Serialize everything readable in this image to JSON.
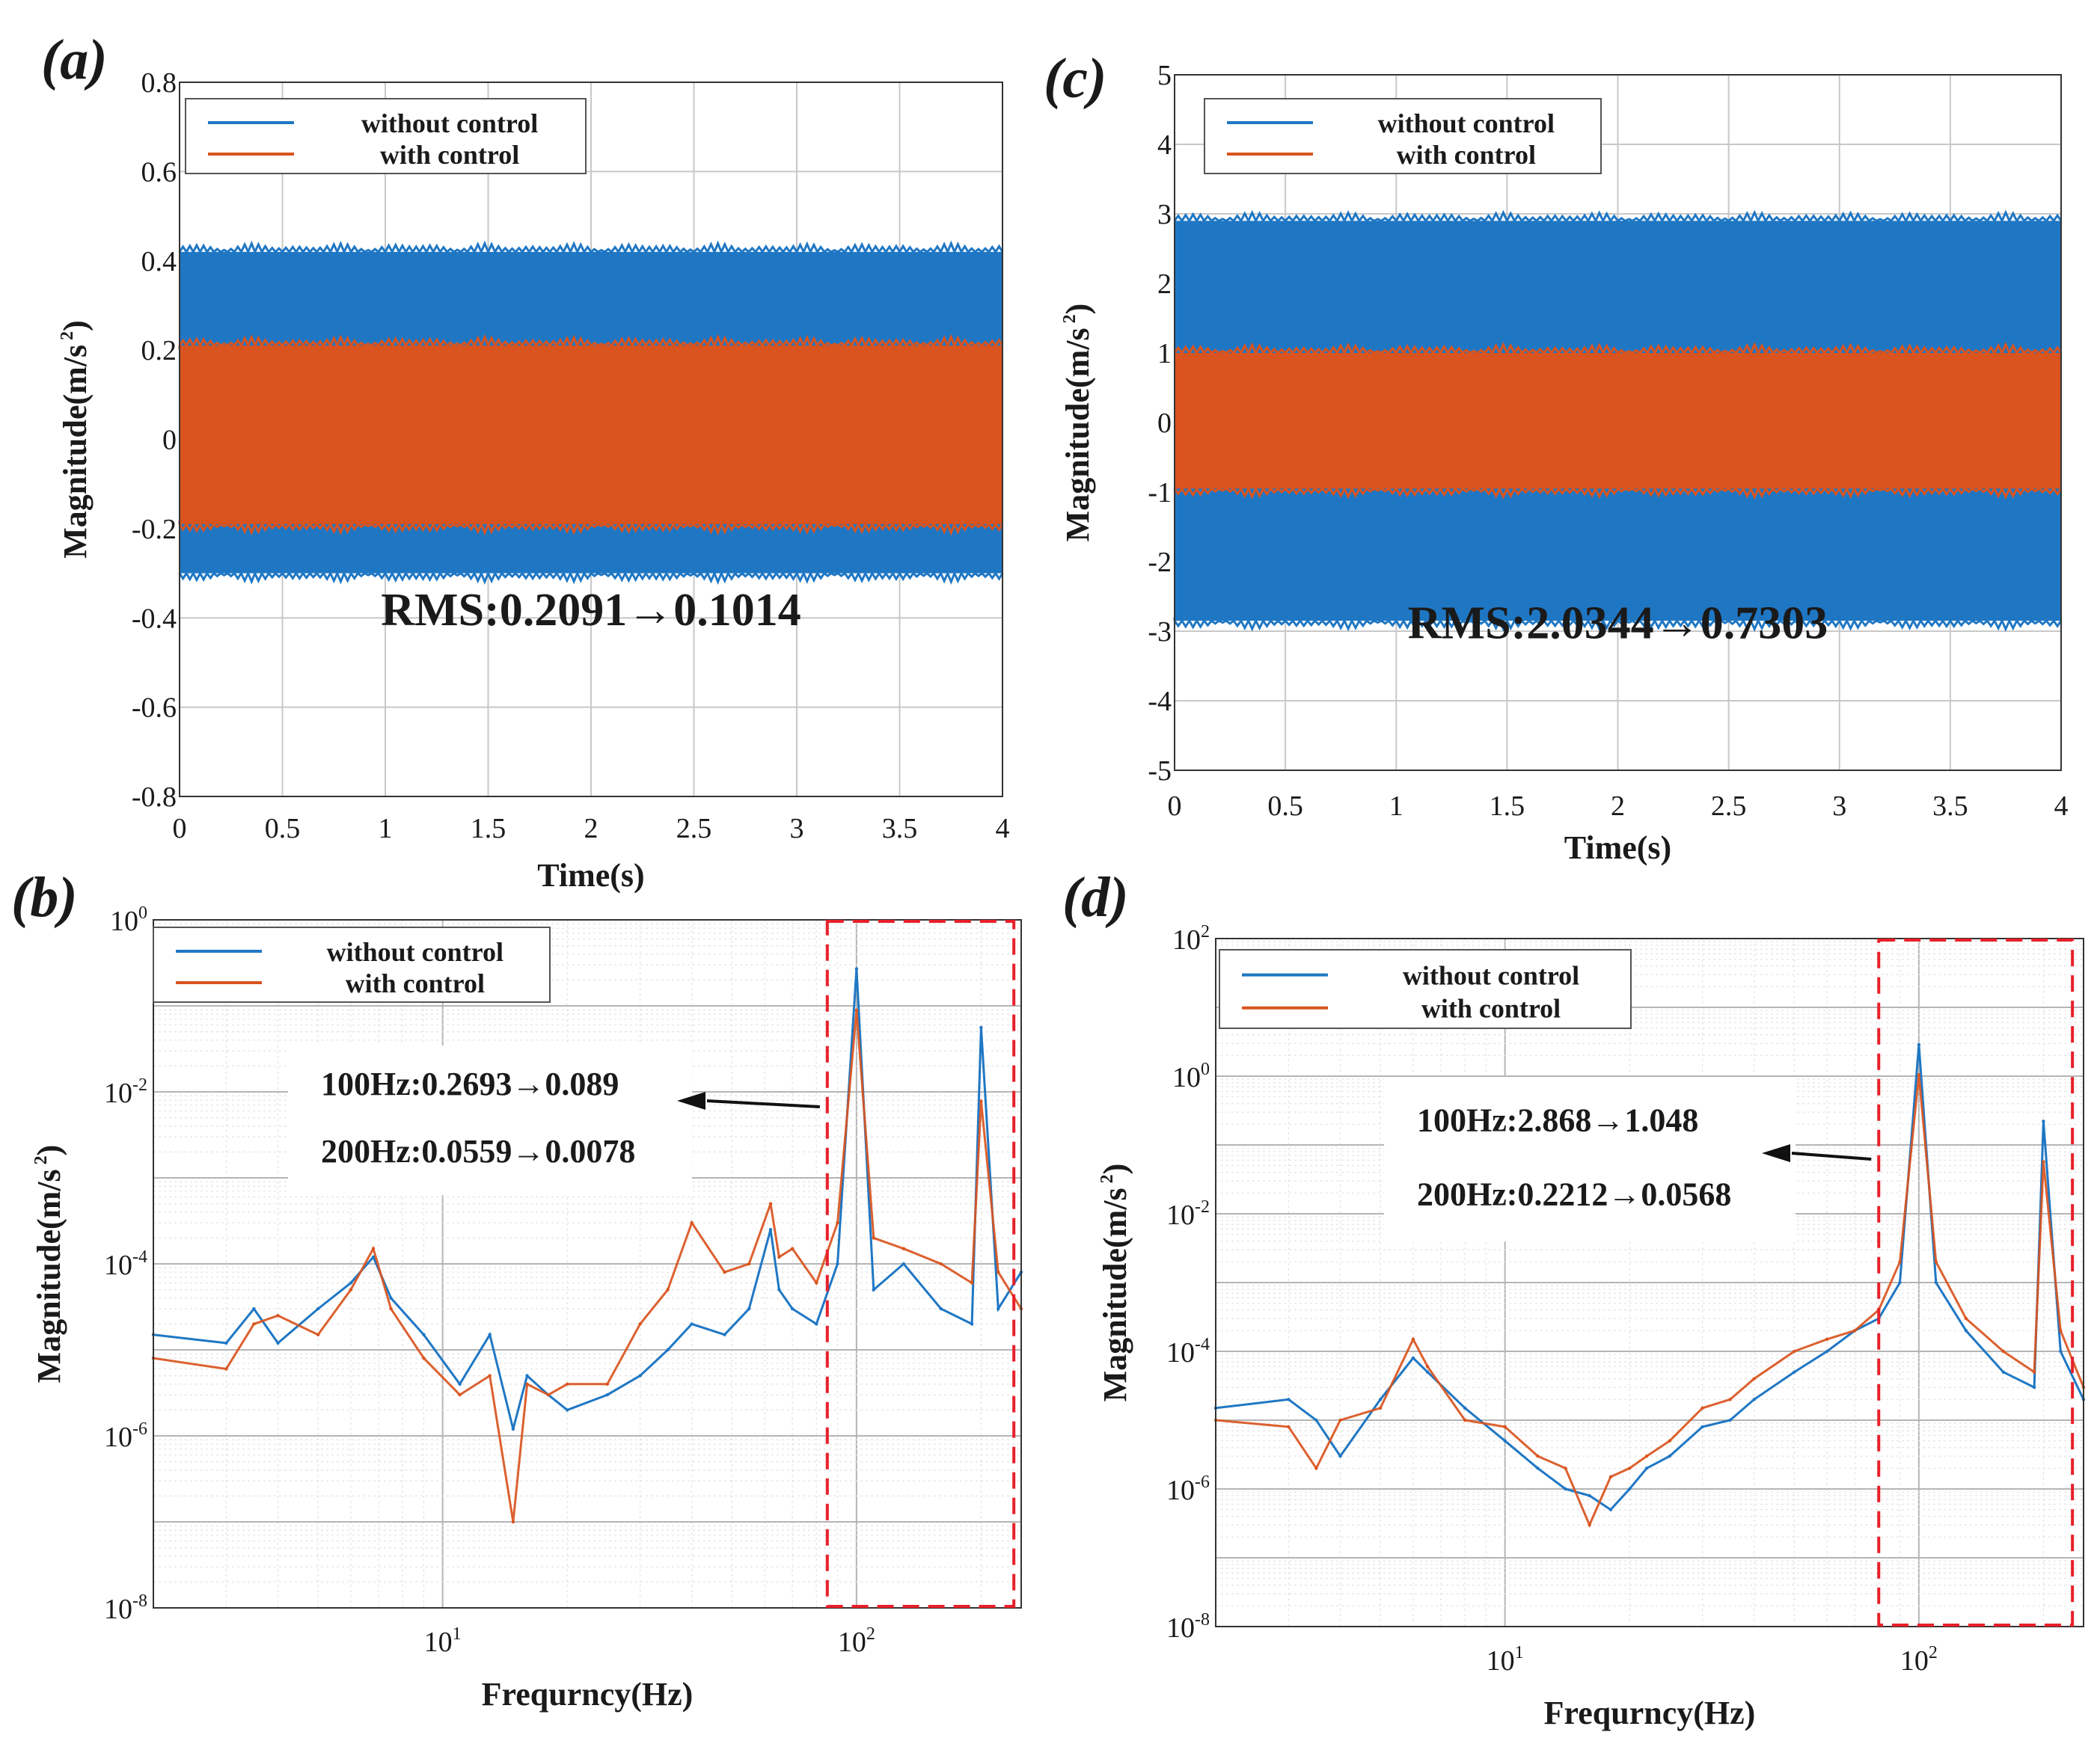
{
  "figure": {
    "colors": {
      "without": "#1f77c4",
      "with": "#d9541e",
      "highlight": "#e8202a",
      "grid": "#c8c8c8",
      "axis": "#333333"
    },
    "legend_labels": {
      "without": "without control",
      "with": "with control"
    }
  },
  "chart_data": [
    {
      "id": "a",
      "type": "line",
      "panel_label": "(a)",
      "title": "",
      "xlabel": "Time(s)",
      "ylabel": "Magnitude(m/s",
      "ylabel_sup": "2",
      "ylabel_close": ")",
      "xlim": [
        0,
        4
      ],
      "ylim": [
        -0.8,
        0.8
      ],
      "x_ticks": [
        "0",
        "0.5",
        "1",
        "1.5",
        "2",
        "2.5",
        "3",
        "3.5",
        "4"
      ],
      "y_ticks": [
        "-0.8",
        "-0.6",
        "-0.4",
        "-0.2",
        "0",
        "0.2",
        "0.4",
        "0.6",
        "0.8"
      ],
      "series": [
        {
          "name": "without control",
          "signal": "oscillation",
          "envelope_upper": 0.42,
          "envelope_lower": -0.3,
          "rms": 0.2091
        },
        {
          "name": "with control",
          "signal": "oscillation",
          "envelope_upper": 0.21,
          "envelope_lower": -0.19,
          "rms": 0.1014
        }
      ],
      "annotation": "RMS:0.2091→0.1014",
      "legend": "top-left"
    },
    {
      "id": "c",
      "type": "line",
      "panel_label": "(c)",
      "title": "",
      "xlabel": "Time(s)",
      "ylabel": "Magnitude(m/s",
      "ylabel_sup": "2",
      "ylabel_close": ")",
      "xlim": [
        0,
        4
      ],
      "ylim": [
        -5,
        5
      ],
      "x_ticks": [
        "0",
        "0.5",
        "1",
        "1.5",
        "2",
        "2.5",
        "3",
        "3.5",
        "4"
      ],
      "y_ticks": [
        "-5",
        "-4",
        "-3",
        "-2",
        "-1",
        "0",
        "1",
        "2",
        "3",
        "4",
        "5"
      ],
      "series": [
        {
          "name": "without control",
          "signal": "oscillation",
          "envelope_upper": 2.9,
          "envelope_lower": -2.85,
          "rms": 2.0344
        },
        {
          "name": "with control",
          "signal": "oscillation",
          "envelope_upper": 1.0,
          "envelope_lower": -0.95,
          "rms": 0.7303
        }
      ],
      "annotation": "RMS:2.0344→0.7303",
      "legend": "top-left"
    },
    {
      "id": "b",
      "type": "line",
      "panel_label": "(b)",
      "title": "",
      "xlabel": "Frequrncy(Hz)",
      "ylabel": "Magnitude(m/s",
      "ylabel_sup": "2",
      "ylabel_close": ")",
      "xscale": "log",
      "yscale": "log",
      "xlim": [
        2,
        250
      ],
      "ylim_exp": [
        -8,
        0
      ],
      "x_tick_values": [
        10,
        100
      ],
      "x_tick_exps": [
        "1",
        "2"
      ],
      "y_tick_exps": [
        "-8",
        "-6",
        "-4",
        "-2",
        "0"
      ],
      "series": [
        {
          "name": "without control",
          "x": [
            2,
            3,
            3.5,
            4,
            5,
            6,
            6.8,
            7.5,
            9,
            11,
            13,
            14.8,
            16,
            18,
            20,
            25,
            30,
            35,
            40,
            48,
            55,
            62,
            65,
            70,
            80,
            90,
            100,
            110,
            130,
            160,
            190,
            200,
            220,
            250
          ],
          "y": [
            1.5e-05,
            1.2e-05,
            3e-05,
            1.2e-05,
            3e-05,
            6e-05,
            0.00012,
            4e-05,
            1.5e-05,
            4e-06,
            1.5e-05,
            1.2e-06,
            5e-06,
            3e-06,
            2e-06,
            3e-06,
            5e-06,
            1e-05,
            2e-05,
            1.5e-05,
            3e-05,
            0.00025,
            5e-05,
            3e-05,
            2e-05,
            0.0001,
            0.2693,
            5e-05,
            0.0001,
            3e-05,
            2e-05,
            0.0559,
            3e-05,
            8e-05
          ]
        },
        {
          "name": "with control",
          "x": [
            2,
            3,
            3.5,
            4,
            5,
            6,
            6.8,
            7.5,
            9,
            11,
            13,
            14.8,
            16,
            18,
            20,
            25,
            30,
            35,
            40,
            48,
            55,
            62,
            65,
            70,
            80,
            90,
            100,
            110,
            130,
            160,
            190,
            200,
            220,
            250
          ],
          "y": [
            8e-06,
            6e-06,
            2e-05,
            2.5e-05,
            1.5e-05,
            5e-05,
            0.00015,
            3e-05,
            8e-06,
            3e-06,
            5e-06,
            1e-07,
            4e-06,
            3e-06,
            4e-06,
            4e-06,
            2e-05,
            5e-05,
            0.0003,
            8e-05,
            0.0001,
            0.0005,
            0.00012,
            0.00015,
            6e-05,
            0.0003,
            0.089,
            0.0002,
            0.00015,
            0.0001,
            6e-05,
            0.0078,
            8e-05,
            3e-05
          ]
        }
      ],
      "annotation_lines": [
        "100Hz:0.2693→0.089",
        "200Hz:0.0559→0.0078"
      ],
      "highlight_box_hz": [
        85,
        240
      ],
      "legend": "top-left"
    },
    {
      "id": "d",
      "type": "line",
      "panel_label": "(d)",
      "title": "",
      "xlabel": "Frequrncy(Hz)",
      "ylabel": "Magnitude(m/s",
      "ylabel_sup": "2",
      "ylabel_close": ")",
      "xscale": "log",
      "yscale": "log",
      "xlim": [
        2,
        250
      ],
      "ylim_exp": [
        -8,
        2
      ],
      "x_tick_values": [
        10,
        100
      ],
      "x_tick_exps": [
        "1",
        "2"
      ],
      "y_tick_exps": [
        "-8",
        "-6",
        "-4",
        "-2",
        "0",
        "2"
      ],
      "series": [
        {
          "name": "without control",
          "x": [
            2,
            3,
            3.5,
            4,
            5,
            6,
            6.5,
            8,
            10,
            12,
            14,
            16,
            18,
            20,
            22,
            25,
            30,
            35,
            40,
            50,
            60,
            70,
            80,
            90,
            100,
            110,
            130,
            160,
            190,
            200,
            220,
            250
          ],
          "y": [
            1.5e-05,
            2e-05,
            1e-05,
            3e-06,
            2e-05,
            8e-05,
            5e-05,
            1.5e-05,
            5e-06,
            2e-06,
            1e-06,
            8e-07,
            5e-07,
            1e-06,
            2e-06,
            3e-06,
            8e-06,
            1e-05,
            2e-05,
            5e-05,
            0.0001,
            0.0002,
            0.0003,
            0.001,
            2.868,
            0.001,
            0.0002,
            5e-05,
            3e-05,
            0.2212,
            0.0001,
            2e-05
          ]
        },
        {
          "name": "with control",
          "x": [
            2,
            3,
            3.5,
            4,
            5,
            6,
            6.5,
            8,
            10,
            12,
            14,
            16,
            18,
            20,
            22,
            25,
            30,
            35,
            40,
            50,
            60,
            70,
            80,
            90,
            100,
            110,
            130,
            160,
            190,
            200,
            220,
            250
          ],
          "y": [
            1e-05,
            8e-06,
            2e-06,
            1e-05,
            1.5e-05,
            0.00015,
            6e-05,
            1e-05,
            8e-06,
            3e-06,
            2e-06,
            3e-07,
            1.5e-06,
            2e-06,
            3e-06,
            5e-06,
            1.5e-05,
            2e-05,
            4e-05,
            0.0001,
            0.00015,
            0.0002,
            0.0004,
            0.002,
            1.048,
            0.002,
            0.0003,
            0.0001,
            5e-05,
            0.0568,
            0.0002,
            3e-05
          ]
        }
      ],
      "annotation_lines": [
        "100Hz:2.868→1.048",
        "200Hz:0.2212→0.0568"
      ],
      "highlight_box_hz": [
        80,
        235
      ],
      "legend": "top-left"
    }
  ]
}
